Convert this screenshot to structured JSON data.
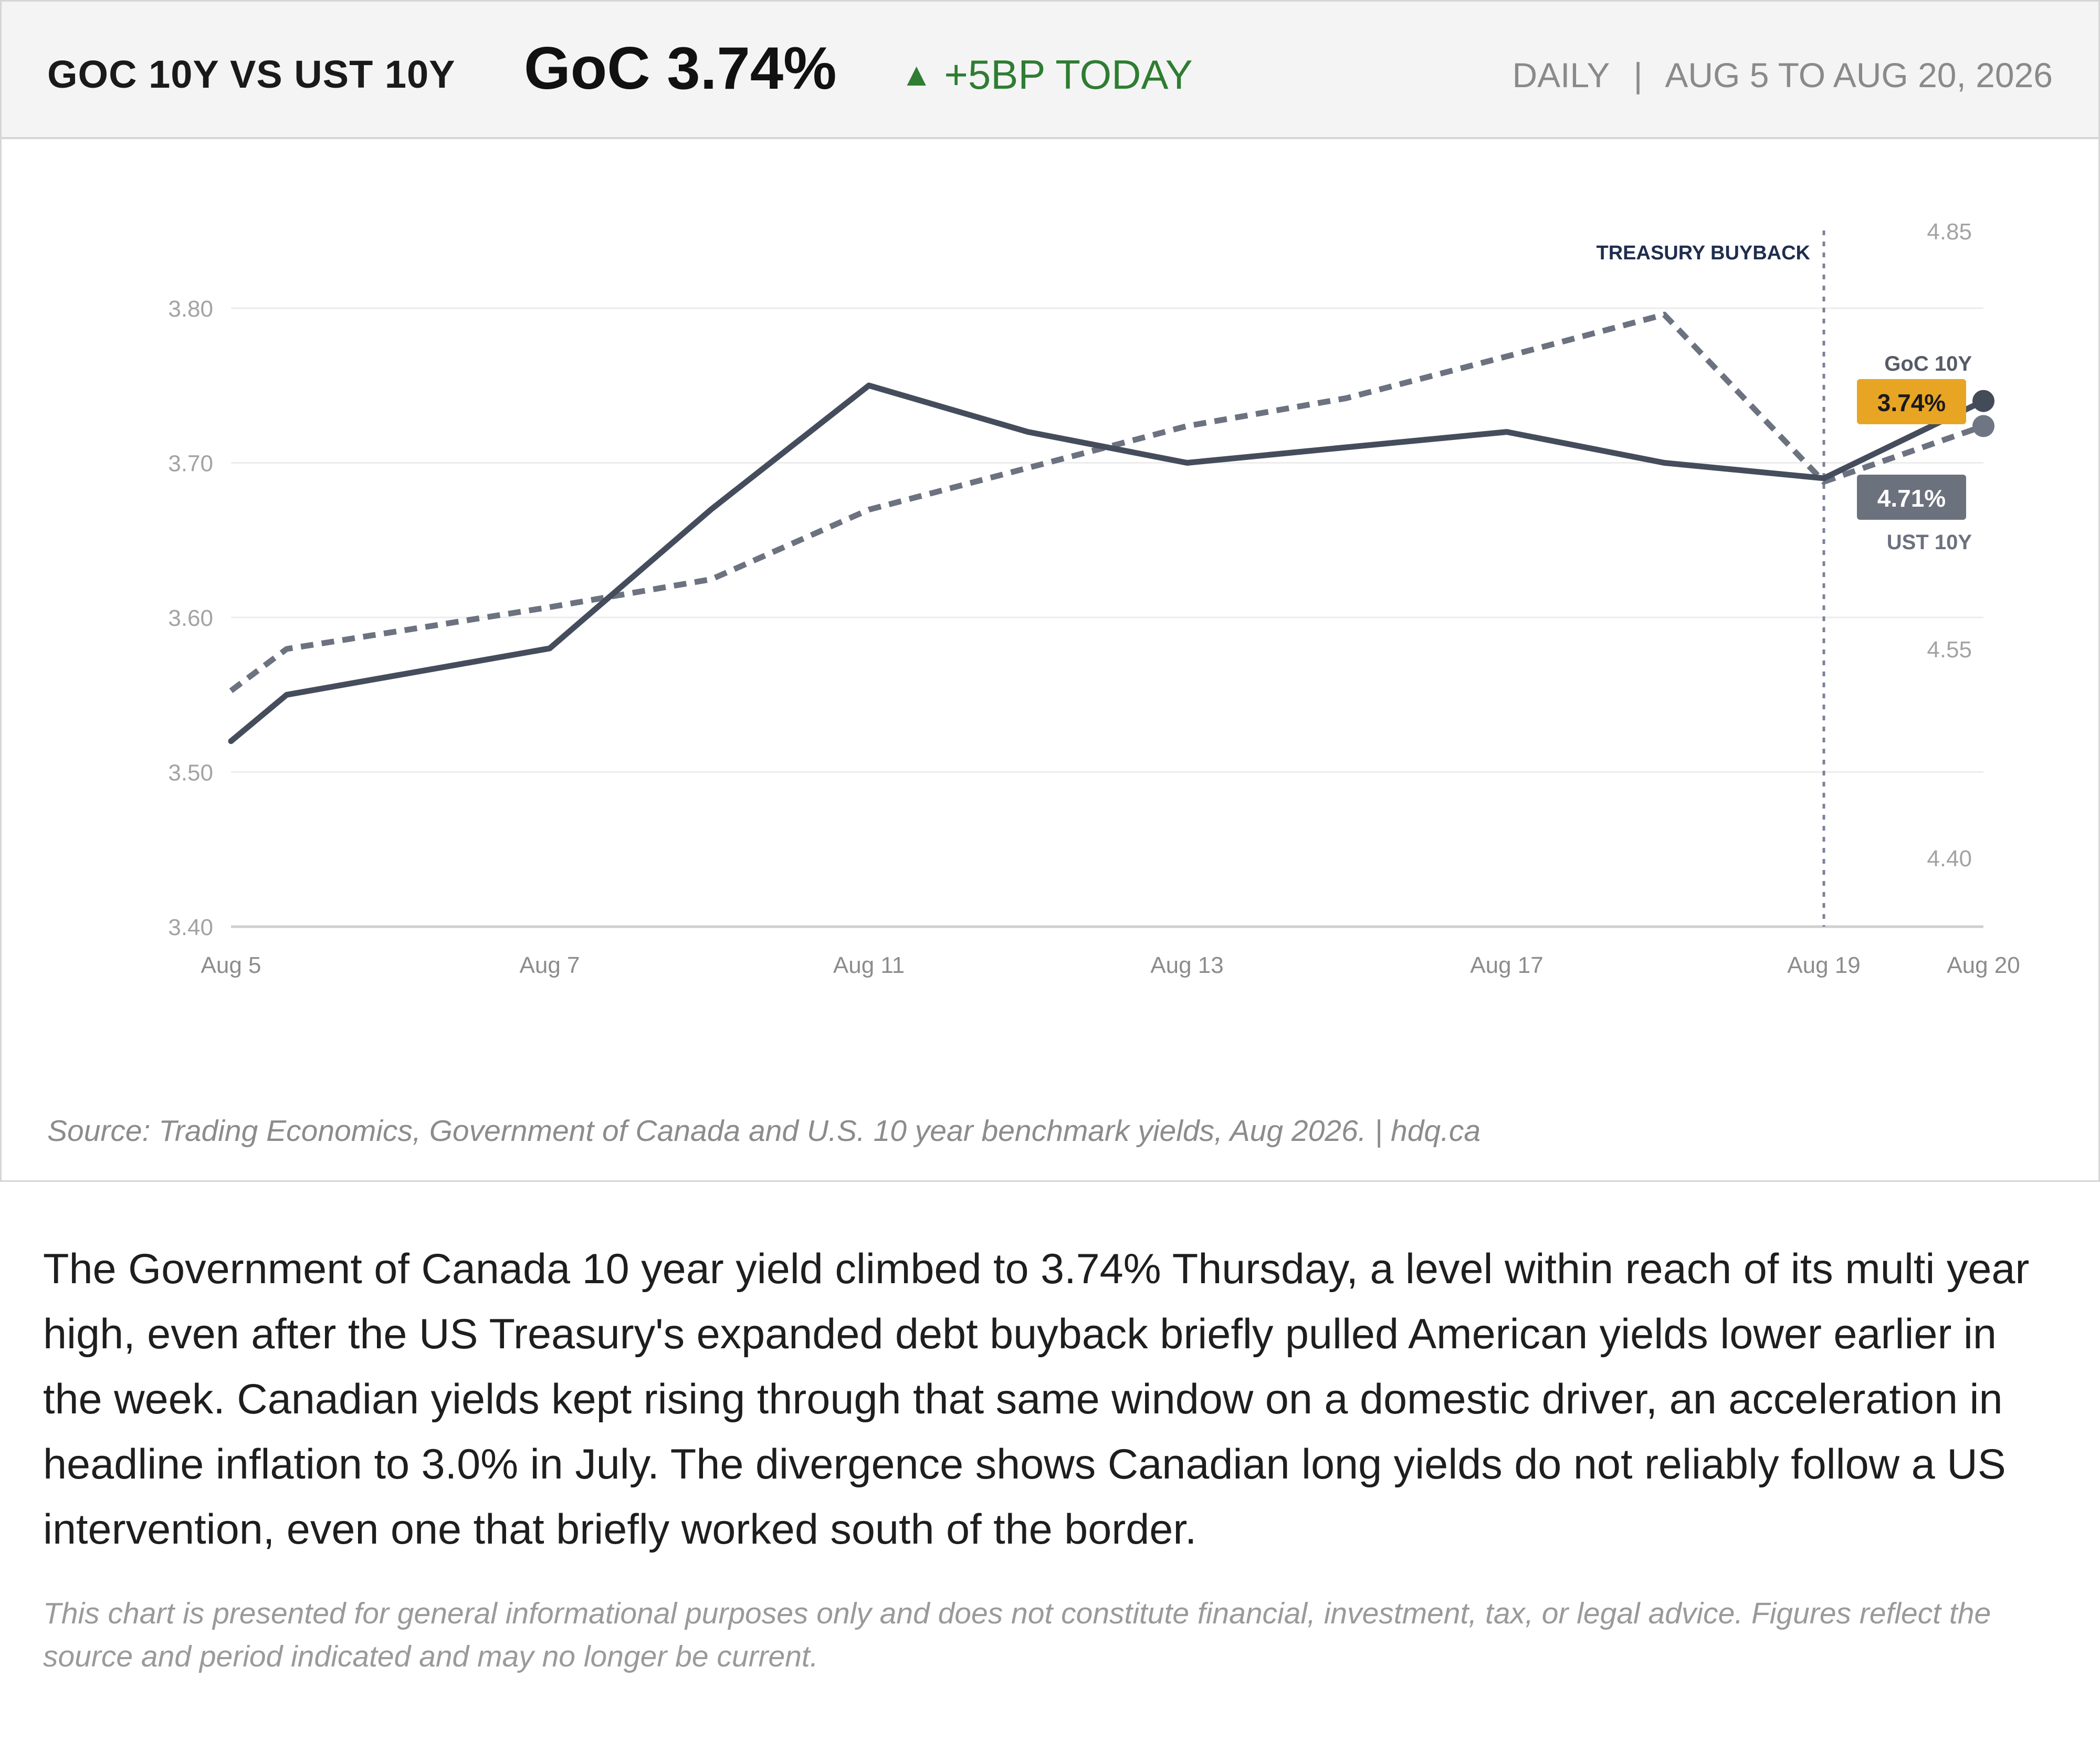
{
  "header": {
    "title": "GOC 10Y VS UST 10Y",
    "value": "GoC 3.74%",
    "change_arrow": "▲",
    "change_text": "+5BP TODAY",
    "period_label": "DAILY",
    "period_separator": "|",
    "period_range": "AUG 5 TO AUG 20, 2026"
  },
  "colors": {
    "goc_line": "#454d5c",
    "ust_line": "#6c727f",
    "goc_badge": "#e8a524",
    "ust_badge": "#6b717d",
    "positive": "#2e7d32",
    "annotation": "#1f2d4f"
  },
  "chart_data": {
    "type": "line",
    "categories": [
      "Aug 5",
      "Aug 6",
      "Aug 7",
      "Aug 10",
      "Aug 11",
      "Aug 12",
      "Aug 13",
      "Aug 14",
      "Aug 17",
      "Aug 18",
      "Aug 19",
      "Aug 20"
    ],
    "x_tick_labels": [
      "Aug 5",
      "Aug 7",
      "Aug 11",
      "Aug 13",
      "Aug 17",
      "Aug 19",
      "Aug 20"
    ],
    "y_left": {
      "ylim": [
        3.4,
        3.8
      ],
      "ticks": [
        "3.80",
        "3.70",
        "3.60",
        "3.50",
        "3.40"
      ]
    },
    "y_right": {
      "ylim": [
        4.4,
        4.85
      ],
      "ticks": [
        "4.85",
        "4.55",
        "4.40"
      ]
    },
    "grid": true,
    "series": [
      {
        "name": "GoC 10Y",
        "axis": "left",
        "style": "solid",
        "values": [
          3.52,
          3.55,
          3.58,
          3.67,
          3.75,
          3.72,
          3.7,
          3.71,
          3.72,
          3.7,
          3.69,
          3.74
        ],
        "end_label": "3.74%"
      },
      {
        "name": "UST 10Y",
        "axis": "right",
        "style": "dashed",
        "values": [
          4.52,
          4.55,
          4.58,
          4.6,
          4.65,
          4.68,
          4.71,
          4.73,
          4.76,
          4.79,
          4.67,
          4.71
        ],
        "end_label": "4.71%"
      }
    ],
    "annotations": [
      {
        "text": "TREASURY BUYBACK",
        "x": "Aug 19",
        "style": "dotted-vertical"
      }
    ]
  },
  "source": "Source: Trading Economics, Government of Canada and U.S. 10 year benchmark yields, Aug 2026.  |  hdq.ca",
  "body": "The Government of Canada 10 year yield climbed to 3.74% Thursday, a level within reach of its multi year high, even after the US Treasury's expanded debt buyback briefly pulled American yields lower earlier in the week. Canadian yields kept rising through that same window on a domestic driver, an acceleration in headline inflation to 3.0% in July. The divergence shows Canadian long yields do not reliably follow a US intervention, even one that briefly worked south of the border.",
  "disclaimer": "This chart is presented for general informational purposes only and does not constitute financial, investment, tax, or legal advice. Figures reflect the source and period indicated and may no longer be current."
}
